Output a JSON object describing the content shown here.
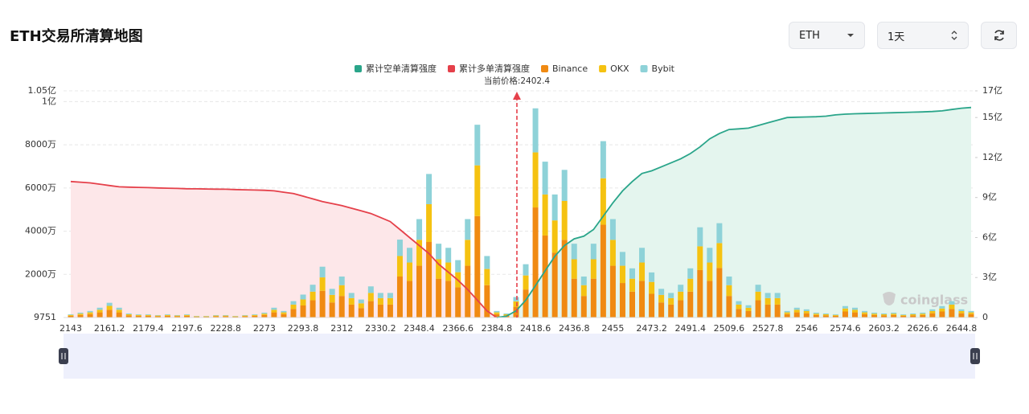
{
  "controls": {
    "coin": "ETH",
    "period": "1天"
  },
  "chart_data": {
    "type": "bar",
    "title": "ETH交易所清算地图",
    "annotation": "当前价格:2402.4",
    "current_price": 2402.4,
    "watermark": "coinglass",
    "categories": [
      2143,
      null,
      null,
      null,
      2161.2,
      null,
      null,
      null,
      2179.4,
      null,
      null,
      null,
      2197.6,
      null,
      null,
      null,
      2228.8,
      null,
      null,
      null,
      2273,
      null,
      null,
      null,
      2293.8,
      null,
      null,
      null,
      2312,
      null,
      null,
      null,
      2330.2,
      null,
      null,
      null,
      2348.4,
      null,
      null,
      null,
      2366.6,
      null,
      null,
      null,
      2384.8,
      null,
      null,
      null,
      2418.6,
      null,
      null,
      null,
      2436.8,
      null,
      null,
      null,
      2455,
      null,
      null,
      null,
      2473.2,
      null,
      null,
      null,
      2491.4,
      null,
      null,
      null,
      2509.6,
      null,
      null,
      null,
      2527.8,
      null,
      null,
      null,
      2546,
      null,
      null,
      null,
      2574.6,
      null,
      null,
      null,
      2603.2,
      null,
      null,
      null,
      2626.6,
      null,
      null,
      null,
      2644.8,
      null
    ],
    "ylim": [
      9751,
      105000000
    ],
    "yticks": [
      9751,
      {
        "value": 20000000,
        "label": "2000万"
      },
      {
        "value": 40000000,
        "label": "4000万"
      },
      {
        "value": 60000000,
        "label": "6000万"
      },
      {
        "value": 80000000,
        "label": "8000万"
      },
      {
        "value": 100000000,
        "label": "1亿"
      },
      {
        "value": 105000000,
        "label": "1.05亿"
      }
    ],
    "y2lim": [
      0,
      1700000000
    ],
    "y2ticks": [
      0,
      {
        "value": 300000000,
        "label": "3亿"
      },
      {
        "value": 600000000,
        "label": "6亿"
      },
      {
        "value": 900000000,
        "label": "9亿"
      },
      {
        "value": 1200000000,
        "label": "12亿"
      },
      {
        "value": 1500000000,
        "label": "15亿"
      },
      {
        "value": 1700000000,
        "label": "17亿"
      }
    ],
    "grid": true,
    "series": [
      {
        "name": "累计空单清算强度",
        "type": "line",
        "axis": "y2",
        "color": "#2aa58a",
        "area_color": "#e4f5ee",
        "values": [
          null,
          null,
          null,
          null,
          null,
          null,
          null,
          null,
          null,
          null,
          null,
          null,
          null,
          null,
          null,
          null,
          null,
          null,
          null,
          null,
          null,
          null,
          null,
          null,
          null,
          null,
          null,
          null,
          null,
          null,
          null,
          null,
          null,
          null,
          null,
          null,
          null,
          null,
          null,
          null,
          null,
          null,
          null,
          null,
          0,
          10000000,
          50000000,
          130000000,
          240000000,
          350000000,
          460000000,
          540000000,
          590000000,
          610000000,
          660000000,
          760000000,
          860000000,
          950000000,
          1020000000,
          1080000000,
          1100000000,
          1130000000,
          1160000000,
          1190000000,
          1230000000,
          1280000000,
          1340000000,
          1380000000,
          1410000000,
          1415000000,
          1420000000,
          1440000000,
          1460000000,
          1480000000,
          1500000000,
          1502000000,
          1504000000,
          1506000000,
          1510000000,
          1520000000,
          1525000000,
          1528000000,
          1530000000,
          1532000000,
          1534000000,
          1536000000,
          1538000000,
          1540000000,
          1542000000,
          1545000000,
          1550000000,
          1560000000,
          1570000000,
          1575000000
        ]
      },
      {
        "name": "累计多单清算强度",
        "type": "line",
        "axis": "y2",
        "color": "#e5404a",
        "area_color": "#fde7e9",
        "values": [
          1020000000,
          1015000000,
          1010000000,
          1000000000,
          990000000,
          980000000,
          978000000,
          976000000,
          974000000,
          972000000,
          970000000,
          968000000,
          966000000,
          965000000,
          964000000,
          963000000,
          962000000,
          960000000,
          958000000,
          956000000,
          954000000,
          950000000,
          940000000,
          930000000,
          910000000,
          890000000,
          870000000,
          855000000,
          840000000,
          820000000,
          800000000,
          780000000,
          750000000,
          720000000,
          660000000,
          600000000,
          540000000,
          480000000,
          400000000,
          340000000,
          280000000,
          210000000,
          130000000,
          50000000,
          0,
          null,
          null,
          null,
          null,
          null,
          null,
          null,
          null,
          null,
          null,
          null,
          null,
          null,
          null,
          null,
          null,
          null,
          null,
          null,
          null,
          null,
          null,
          null,
          null,
          null,
          null,
          null,
          null,
          null,
          null,
          null,
          null,
          null,
          null,
          null,
          null,
          null,
          null,
          null,
          null,
          null,
          null,
          null,
          null,
          null,
          null,
          null,
          null,
          null
        ]
      },
      {
        "name": "Binance",
        "type": "bar",
        "color": "#f08a12",
        "values": [
          800000,
          1200000,
          1600000,
          2400000,
          3600000,
          2400000,
          1000000,
          800000,
          800000,
          600000,
          800000,
          600000,
          800000,
          400000,
          400000,
          600000,
          600000,
          400000,
          600000,
          800000,
          1200000,
          2400000,
          1600000,
          4000000,
          5600000,
          8000000,
          12400000,
          7000000,
          10000000,
          6000000,
          4400000,
          7600000,
          6000000,
          6000000,
          19000000,
          17000000,
          24000000,
          35000000,
          18000000,
          17000000,
          14000000,
          24000000,
          47000000,
          15000000,
          1600000,
          1000000,
          5000000,
          13000000,
          51000000,
          38000000,
          30000000,
          36000000,
          18000000,
          10000000,
          18000000,
          43000000,
          24000000,
          16000000,
          12000000,
          17000000,
          11000000,
          7000000,
          6000000,
          8000000,
          12000000,
          22000000,
          17000000,
          23000000,
          10000000,
          4000000,
          3000000,
          8000000,
          6000000,
          6000000,
          1600000,
          2400000,
          2000000,
          1200000,
          1000000,
          800000,
          2800000,
          2400000,
          1600000,
          1200000,
          1000000,
          1200000,
          800000,
          1000000,
          1200000,
          2000000,
          2800000,
          4000000,
          2000000,
          1600000
        ]
      },
      {
        "name": "OKX",
        "type": "bar",
        "color": "#f5c211",
        "values": [
          400000,
          600000,
          800000,
          1200000,
          1800000,
          1200000,
          500000,
          400000,
          400000,
          300000,
          400000,
          300000,
          400000,
          200000,
          200000,
          300000,
          300000,
          200000,
          300000,
          400000,
          600000,
          1200000,
          800000,
          2000000,
          2800000,
          4000000,
          6200000,
          3500000,
          5000000,
          3000000,
          2200000,
          3800000,
          3000000,
          3000000,
          9500000,
          8500000,
          12000000,
          17500000,
          9000000,
          8500000,
          7000000,
          12000000,
          23500000,
          7500000,
          800000,
          500000,
          2500000,
          6500000,
          25500000,
          19000000,
          15000000,
          18000000,
          9000000,
          5000000,
          9000000,
          21500000,
          12000000,
          8000000,
          6000000,
          8500000,
          5500000,
          3500000,
          3000000,
          4000000,
          6000000,
          11000000,
          8500000,
          11500000,
          5000000,
          2000000,
          1500000,
          4000000,
          3000000,
          3000000,
          800000,
          1200000,
          1000000,
          600000,
          500000,
          400000,
          1400000,
          1200000,
          800000,
          600000,
          500000,
          600000,
          400000,
          500000,
          600000,
          1000000,
          1400000,
          2000000,
          1000000,
          800000
        ]
      },
      {
        "name": "Bybit",
        "type": "bar",
        "color": "#8ed2d8",
        "values": [
          320000,
          480000,
          640000,
          960000,
          1440000,
          960000,
          400000,
          320000,
          320000,
          240000,
          320000,
          240000,
          320000,
          160000,
          160000,
          240000,
          240000,
          160000,
          240000,
          320000,
          480000,
          960000,
          640000,
          1600000,
          2240000,
          3200000,
          4960000,
          2800000,
          4000000,
          2400000,
          1760000,
          3040000,
          2400000,
          2400000,
          7600000,
          6800000,
          9600000,
          14000000,
          7200000,
          6800000,
          5600000,
          9600000,
          18800000,
          6000000,
          640000,
          400000,
          2000000,
          5200000,
          20400000,
          15200000,
          12000000,
          14400000,
          7200000,
          4000000,
          7200000,
          17200000,
          9600000,
          6400000,
          4800000,
          6800000,
          4400000,
          2800000,
          2400000,
          3200000,
          4800000,
          8800000,
          6800000,
          9200000,
          4000000,
          1600000,
          1200000,
          3200000,
          2400000,
          2400000,
          640000,
          960000,
          800000,
          480000,
          400000,
          320000,
          1120000,
          960000,
          640000,
          480000,
          400000,
          480000,
          320000,
          400000,
          480000,
          800000,
          1120000,
          1600000,
          800000,
          640000
        ]
      }
    ]
  }
}
